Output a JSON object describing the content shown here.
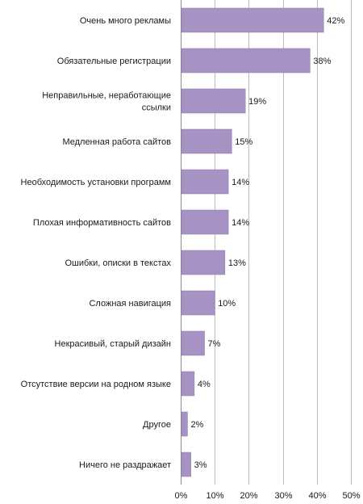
{
  "chart_data": {
    "type": "bar",
    "orientation": "horizontal",
    "categories": [
      "Очень много рекламы",
      "Обязательные регистрации",
      [
        "Неправильные, неработающие",
        "ссылки"
      ],
      "Медленная работа сайтов",
      "Необходимость установки программ",
      "Плохая информативность сайтов",
      "Ошибки, описки в текстах",
      "Сложная навигация",
      "Некрасивый, старый дизайн",
      "Отсутствие версии на родном языке",
      "Другое",
      "Ничего не раздражает"
    ],
    "values": [
      42,
      38,
      19,
      15,
      14,
      14,
      13,
      10,
      7,
      4,
      2,
      3
    ],
    "value_labels": [
      "42%",
      "38%",
      "19%",
      "15%",
      "14%",
      "14%",
      "13%",
      "10%",
      "7%",
      "4%",
      "2%",
      "3%"
    ],
    "xlim": [
      0,
      50
    ],
    "x_ticks": [
      "0%",
      "10%",
      "20%",
      "30%",
      "40%",
      "50%"
    ],
    "grid": "vertical",
    "bar_color": "#a693c3",
    "bar_edge_color": "#8c7aad"
  }
}
